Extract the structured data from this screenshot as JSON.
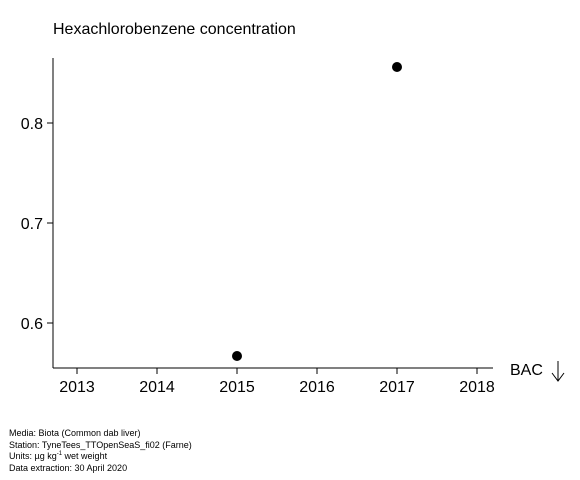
{
  "chart_data": {
    "type": "scatter",
    "title": "Hexachlorobenzene concentration",
    "xlabel": "",
    "ylabel": "",
    "x_ticks": [
      2013,
      2014,
      2015,
      2016,
      2017,
      2018
    ],
    "y_ticks": [
      "0.6",
      "0.7",
      "0.8"
    ],
    "xlim": [
      2012.7,
      2018.2
    ],
    "ylim": [
      0.555,
      0.865
    ],
    "points": [
      {
        "x": 2015,
        "y": 0.567
      },
      {
        "x": 2017,
        "y": 0.856
      }
    ],
    "marker_color": "#000000",
    "grid": false,
    "reference_label": "BAC",
    "reference_symbol": "arrow-down"
  },
  "footer": {
    "media": "Media: Biota (Common dab liver)",
    "station": "Station: TyneTees_TTOpenSeaS_fi02 (Farne)",
    "units_prefix": "Units:  µg kg",
    "units_exponent": "-1",
    "units_suffix": " wet weight",
    "extraction": "Data extraction: 30 April 2020"
  }
}
